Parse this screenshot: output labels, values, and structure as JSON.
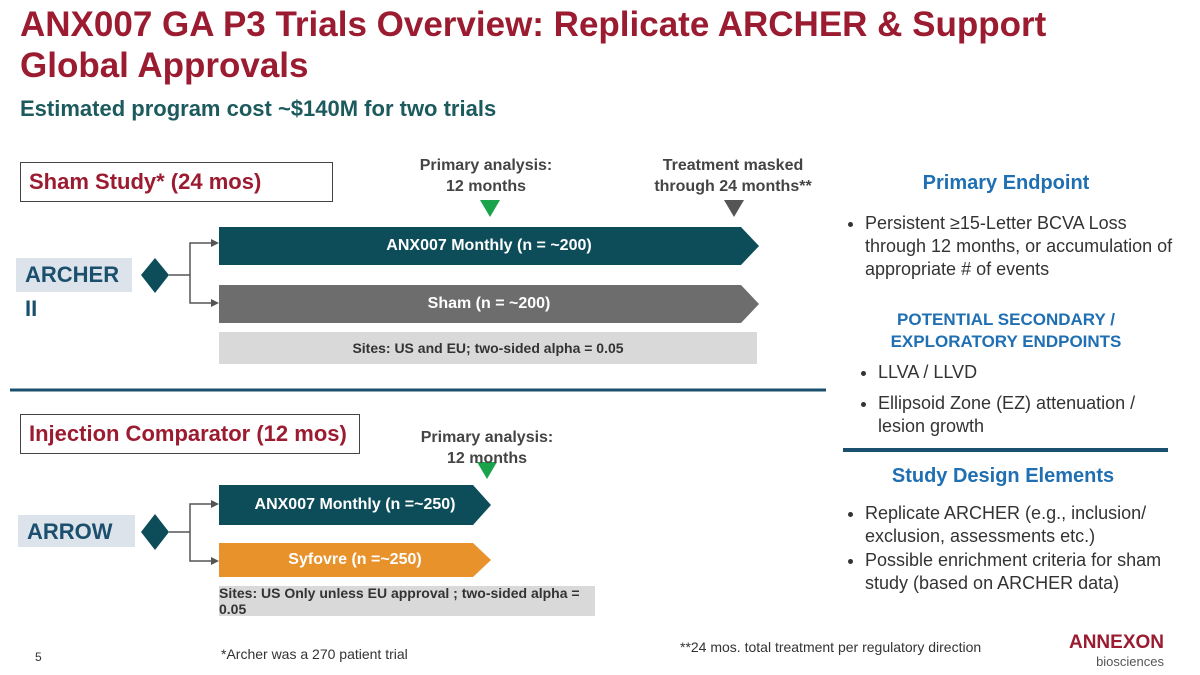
{
  "title": "ANX007 GA P3 Trials Overview: Replicate ARCHER & Support Global Approvals",
  "subtitle": "Estimated program cost ~$140M for two trials",
  "sham_study": {
    "heading": "Sham Study* (24 mos)",
    "trial": "ARCHER II",
    "primary_analysis": [
      "Primary analysis:",
      "12 months"
    ],
    "masked": [
      "Treatment masked",
      "through 24 months**"
    ],
    "arms": [
      "ANX007 Monthly (n = ~200)",
      "Sham (n = ~200)"
    ],
    "sites": "Sites: US and EU; two-sided alpha = 0.05"
  },
  "injection_comparator": {
    "heading": "Injection Comparator (12 mos)",
    "trial": "ARROW",
    "primary_analysis": [
      "Primary analysis:",
      "12 months"
    ],
    "arms": [
      "ANX007 Monthly (n =~250)",
      "Syfovre (n =~250)"
    ],
    "sites": "Sites: US Only unless EU approval ; two-sided alpha = 0.05"
  },
  "primary_endpoint": {
    "heading": "Primary Endpoint",
    "bullets": [
      "Persistent ≥15-Letter BCVA Loss through 12 months, or accumulation of appropriate # of events"
    ]
  },
  "secondary_endpoints": {
    "heading": "POTENTIAL SECONDARY / EXPLORATORY ENDPOINTS",
    "bullets": [
      "LLVA / LLVD",
      "Ellipsoid Zone (EZ) attenuation / lesion growth"
    ]
  },
  "study_design": {
    "heading": "Study Design Elements",
    "bullets": [
      "Replicate ARCHER (e.g., inclusion/ exclusion, assessments etc.)",
      "Possible enrichment criteria for sham study (based on ARCHER data)"
    ]
  },
  "footnotes": [
    "*Archer was a 270 patient trial",
    "**24 mos. total treatment per regulatory direction"
  ],
  "page_number": "5",
  "logo": {
    "name": "ANNEXON",
    "tagline": "biosciences"
  }
}
